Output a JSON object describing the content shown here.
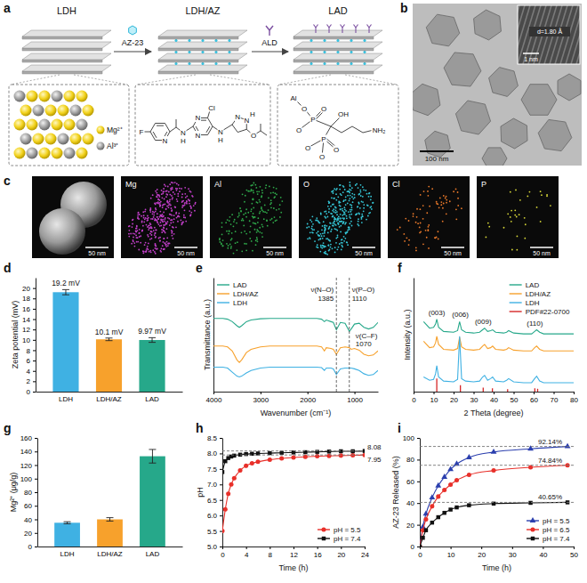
{
  "figure": {
    "panel_a": {
      "letter": "a",
      "stages": [
        "LDH",
        "LDH/AZ",
        "LAD"
      ],
      "steps": [
        "AZ-23",
        "ALD"
      ],
      "ions": [
        "Mg²⁺",
        "Al³⁺"
      ],
      "az23_atoms": [
        "F",
        "N",
        "N",
        "H",
        "N",
        "N",
        "Cl",
        "N",
        "H",
        "N",
        "N",
        "H",
        "O"
      ],
      "ald_atoms": [
        "Al",
        "O",
        "O",
        "P",
        "O",
        "OH",
        "NH₂",
        "O",
        "P",
        "O",
        "O"
      ]
    },
    "panel_b": {
      "letter": "b",
      "scale_bar": "100 nm",
      "inset_scale_bar": "1 nm",
      "d_spacing": "d=1.80 Å"
    },
    "panel_c": {
      "letter": "c",
      "scale_bar": "50 nm",
      "elements": [
        {
          "label": "Mg",
          "color": "#c23fc9"
        },
        {
          "label": "Al",
          "color": "#2fa84a"
        },
        {
          "label": "O",
          "color": "#35c6d6"
        },
        {
          "label": "Cl",
          "color": "#e8782a"
        },
        {
          "label": "P",
          "color": "#d8d838"
        }
      ]
    }
  },
  "chart_data": [
    {
      "panel": "d",
      "type": "bar",
      "categories": [
        "LDH",
        "LDH/AZ",
        "LAD"
      ],
      "values": [
        19.2,
        10.1,
        9.97
      ],
      "errors": [
        0.5,
        0.25,
        0.45
      ],
      "value_labels": [
        "19.2 mV",
        "10.1 mV",
        "9.97 mV"
      ],
      "data_labels": true,
      "colors": [
        "#3fb1e3",
        "#f7a12c",
        "#26a88a"
      ],
      "y_label": "Zeta potential (mV)",
      "ylim": [
        0,
        22
      ],
      "yticks": [
        0,
        2,
        4,
        6,
        8,
        10,
        12,
        14,
        16,
        18,
        20
      ]
    },
    {
      "panel": "e",
      "type": "line",
      "x_label": "Wavenumber (cm⁻¹)",
      "y_label": "Transmittance (a.u.)",
      "xlim": [
        4000,
        500
      ],
      "xticks": [
        4000,
        3000,
        2000,
        1000
      ],
      "ylim": [
        0,
        14
      ],
      "tick_labels": "x",
      "legend": "upper left",
      "x": [
        4000,
        3800,
        3700,
        3600,
        3500,
        3450,
        3400,
        3300,
        3200,
        3000,
        2800,
        2500,
        2200,
        2000,
        1800,
        1700,
        1640,
        1600,
        1500,
        1450,
        1385,
        1300,
        1200,
        1110,
        1070,
        1000,
        900,
        800,
        700,
        600,
        500
      ],
      "series": [
        {
          "name": "LAD",
          "color": "#26a88a",
          "values": [
            9.0,
            9.0,
            8.9,
            8.6,
            8.1,
            7.9,
            8.1,
            8.6,
            8.8,
            8.95,
            9.0,
            9.0,
            9.0,
            9.0,
            9.0,
            8.9,
            8.6,
            8.8,
            8.6,
            8.5,
            7.6,
            8.5,
            8.4,
            7.4,
            7.7,
            8.3,
            8.4,
            7.9,
            7.7,
            7.9,
            8.5
          ]
        },
        {
          "name": "LDH/AZ",
          "color": "#f7a12c",
          "values": [
            5.6,
            5.6,
            5.5,
            5.0,
            3.9,
            3.6,
            3.9,
            4.8,
            5.2,
            5.5,
            5.6,
            5.6,
            5.6,
            5.6,
            5.6,
            5.5,
            5.0,
            5.4,
            5.3,
            5.2,
            4.6,
            5.4,
            5.5,
            5.4,
            5.2,
            5.3,
            5.1,
            4.6,
            4.4,
            4.5,
            5.0
          ]
        },
        {
          "name": "LDH",
          "color": "#3fb1e3",
          "values": [
            3.0,
            3.0,
            2.9,
            2.4,
            1.9,
            1.8,
            1.9,
            2.3,
            2.6,
            2.9,
            3.0,
            3.0,
            3.0,
            3.0,
            3.0,
            2.95,
            2.6,
            2.9,
            2.9,
            2.8,
            2.1,
            2.8,
            2.9,
            2.9,
            2.9,
            2.8,
            2.6,
            2.2,
            2.0,
            2.1,
            2.6
          ]
        }
      ],
      "annotations": [
        {
          "x": 1385,
          "label": "1385",
          "text": "ν(N–O)",
          "line_style": "dashed"
        },
        {
          "x": 1110,
          "label": "1110",
          "text": "ν(P–O)",
          "line_style": "dashed"
        },
        {
          "x": 1070,
          "label": "1070",
          "text": "ν(C–F)"
        }
      ]
    },
    {
      "panel": "f",
      "type": "line",
      "x_label": "2 Theta (degree)",
      "y_label": "Intensity (a.u.)",
      "xlim": [
        0,
        80
      ],
      "xticks": [
        0,
        10,
        20,
        30,
        40,
        50,
        60,
        70,
        80
      ],
      "ylim": [
        0,
        14
      ],
      "tick_labels": "x",
      "legend": "upper right",
      "x": [
        5,
        8,
        10,
        11,
        11.6,
        12.5,
        15,
        20,
        22,
        23,
        24,
        26,
        30,
        33,
        34.5,
        35.5,
        37,
        38.5,
        39.5,
        41,
        45,
        46.5,
        47.5,
        50,
        55,
        59,
        60.5,
        61.5,
        63,
        65,
        70,
        75,
        80
      ],
      "series": [
        {
          "name": "LAD",
          "color": "#26a88a",
          "values": [
            8.6,
            7.8,
            7.9,
            8.3,
            8.9,
            7.9,
            7.4,
            7.3,
            7.5,
            8.6,
            7.6,
            7.3,
            7.2,
            7.3,
            7.6,
            7.8,
            7.4,
            7.5,
            7.6,
            7.3,
            7.2,
            7.3,
            7.5,
            7.2,
            7.1,
            7.1,
            7.4,
            7.6,
            7.3,
            7.1,
            7.1,
            7.1,
            7.1
          ]
        },
        {
          "name": "LDH/AZ",
          "color": "#f7a12c",
          "values": [
            6.2,
            5.4,
            5.5,
            6.0,
            6.8,
            5.8,
            5.2,
            5.1,
            5.3,
            6.7,
            5.5,
            5.2,
            5.1,
            5.2,
            5.6,
            5.8,
            5.3,
            5.4,
            5.6,
            5.2,
            5.1,
            5.2,
            5.4,
            5.1,
            5.0,
            5.0,
            5.4,
            5.6,
            5.2,
            5.0,
            5.0,
            5.0,
            5.0
          ]
        },
        {
          "name": "LDH",
          "color": "#3fb1e3",
          "values": [
            1.8,
            1.4,
            1.5,
            2.2,
            3.2,
            1.8,
            1.3,
            1.2,
            1.5,
            6.8,
            1.6,
            1.3,
            1.2,
            1.3,
            1.8,
            2.0,
            1.4,
            1.6,
            1.8,
            1.3,
            1.2,
            1.4,
            1.6,
            1.2,
            1.1,
            1.1,
            1.6,
            1.9,
            1.3,
            1.1,
            1.1,
            1.1,
            1.1
          ]
        },
        {
          "name": "PDF#22-0700",
          "type": "stick",
          "color": "#d62728",
          "x": [
            11.6,
            23.4,
            34.8,
            39.4,
            47.0,
            60.6,
            62.0
          ],
          "values": [
            1.6,
            0.8,
            0.5,
            0.4,
            0.3,
            0.4,
            0.35
          ]
        }
      ],
      "annotations": [
        {
          "x": 11.6,
          "text": "(003)"
        },
        {
          "x": 23.4,
          "text": "(006)"
        },
        {
          "x": 34.8,
          "text": "(009)"
        },
        {
          "x": 60.6,
          "text": "(110)"
        }
      ]
    },
    {
      "panel": "g",
      "type": "bar",
      "categories": [
        "LDH",
        "LDH/AZ",
        "LAD"
      ],
      "values": [
        35,
        40,
        133
      ],
      "errors": [
        1.5,
        2.5,
        10
      ],
      "colors": [
        "#3fb1e3",
        "#f7a12c",
        "#26a88a"
      ],
      "y_label": "Mg²⁺ (μg/g)",
      "ylim": [
        0,
        160
      ],
      "yticks": [
        0,
        20,
        40,
        60,
        80,
        100,
        120,
        140,
        160
      ]
    },
    {
      "panel": "h",
      "type": "line",
      "x_label": "Time (h)",
      "y_label": "pH",
      "xlim": [
        0,
        24
      ],
      "xticks": [
        0,
        4,
        8,
        12,
        16,
        20,
        24
      ],
      "ylim": [
        5,
        8.5
      ],
      "yticks": [
        {
          "value": 5,
          "label": "5.0"
        },
        5.5,
        {
          "value": 6,
          "label": "6.0"
        },
        6.5,
        {
          "value": 7,
          "label": "7.0"
        },
        7.5,
        {
          "value": 8,
          "label": "8.0"
        },
        8.5
      ],
      "legend": "lower right",
      "x": [
        0,
        0.5,
        1,
        1.5,
        2,
        3,
        4,
        5,
        6,
        8,
        10,
        12,
        14,
        16,
        18,
        20,
        22,
        24
      ],
      "series": [
        {
          "name": "pH = 5.5",
          "color": "#e8302a",
          "marker": "circle",
          "values": [
            5.5,
            6.2,
            6.7,
            7.0,
            7.2,
            7.45,
            7.6,
            7.68,
            7.73,
            7.8,
            7.84,
            7.87,
            7.89,
            7.91,
            7.92,
            7.93,
            7.94,
            7.95
          ]
        },
        {
          "name": "pH = 7.4",
          "color": "#111111",
          "marker": "square",
          "values": [
            7.4,
            7.75,
            7.85,
            7.9,
            7.93,
            7.96,
            7.98,
            7.99,
            8.0,
            8.01,
            8.02,
            8.03,
            8.04,
            8.05,
            8.06,
            8.07,
            8.07,
            8.08
          ]
        }
      ],
      "annotations": [
        {
          "y": 8.08,
          "line_style": "dashed"
        },
        {
          "y": 7.95,
          "line_style": "dashed"
        }
      ]
    },
    {
      "panel": "i",
      "type": "line",
      "x_label": "Time (h)",
      "y_label": "AZ-23 Released (%)",
      "xlim": [
        0,
        50
      ],
      "xticks": [
        0,
        10,
        20,
        30,
        40,
        50
      ],
      "ylim": [
        0,
        100
      ],
      "yticks": [
        0,
        20,
        40,
        60,
        80,
        100
      ],
      "legend": "lower right",
      "x": [
        0,
        1,
        2,
        4,
        6,
        8,
        10,
        12,
        16,
        24,
        36,
        48
      ],
      "series": [
        {
          "name": "pH = 5.5",
          "color": "#2b3fae",
          "marker": "triangle",
          "values": [
            0,
            18,
            30,
            45,
            56,
            64,
            71,
            76,
            82,
            87,
            90,
            92.14
          ]
        },
        {
          "name": "pH = 6.5",
          "color": "#e8302a",
          "marker": "circle",
          "values": [
            0,
            15,
            25,
            37,
            46,
            52,
            57,
            61,
            66,
            70,
            73,
            74.84
          ]
        },
        {
          "name": "pH = 7.4",
          "color": "#111111",
          "marker": "square",
          "values": [
            0,
            8,
            15,
            22,
            27,
            31,
            34,
            36,
            38,
            39.5,
            40.2,
            40.65
          ]
        }
      ],
      "annotations": [
        {
          "y": 92.14,
          "label": "92.14%",
          "line_style": "dashed"
        },
        {
          "y": 74.84,
          "label": "74.84%",
          "line_style": "dashed"
        },
        {
          "y": 40.65,
          "label": "40.65%",
          "line_style": "dashed"
        }
      ]
    }
  ]
}
